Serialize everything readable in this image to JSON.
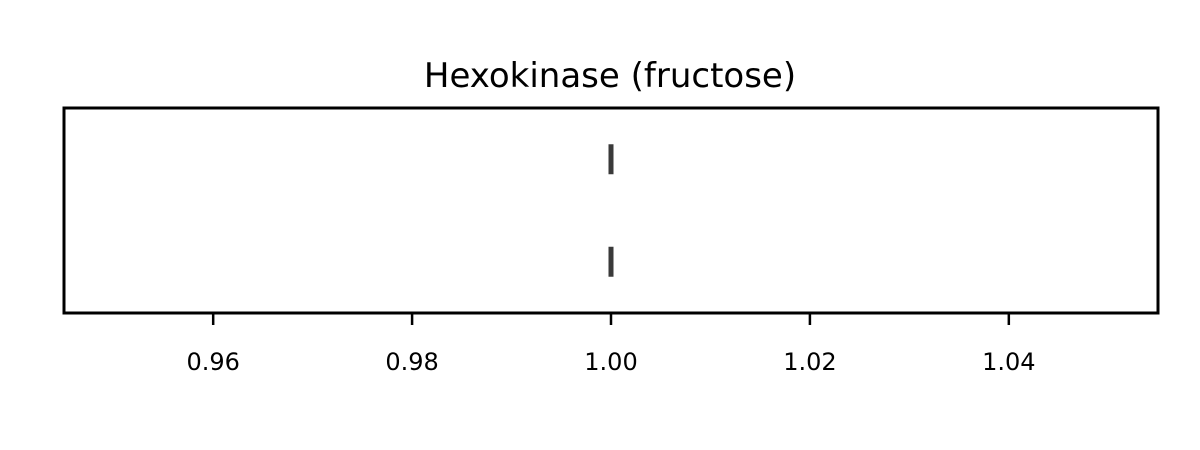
{
  "chart_data": {
    "type": "scatter",
    "title": "Hexokinase (fructose)",
    "xlabel": "",
    "ylabel": "",
    "xlim": [
      0.945,
      1.055
    ],
    "ylim": [
      -0.5,
      1.5
    ],
    "xticks": [
      0.96,
      0.98,
      1.0,
      1.02,
      1.04
    ],
    "xtick_labels": [
      "0.96",
      "0.98",
      "1.00",
      "1.02",
      "1.04"
    ],
    "yticks_visible": false,
    "grid": false,
    "legend": "none",
    "marker": "vertical-line",
    "marker_color": "#3a3a3a",
    "points": [
      {
        "x": 1.0,
        "y": 1
      },
      {
        "x": 1.0,
        "y": 0
      }
    ]
  }
}
